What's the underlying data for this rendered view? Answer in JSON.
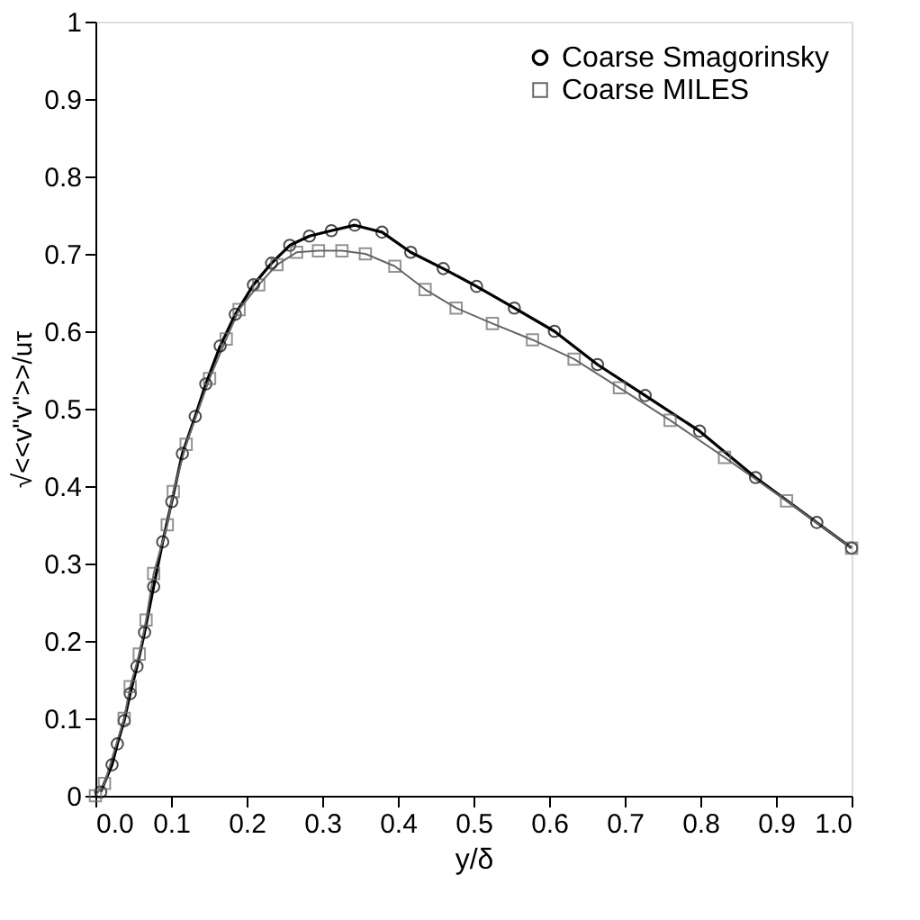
{
  "chart_data": {
    "type": "line",
    "xlabel": "y/δ",
    "ylabel": "√<<v\"v\">>/uτ",
    "xlim": [
      0,
      1
    ],
    "ylim": [
      0,
      1
    ],
    "xticks": [
      {
        "value": 0,
        "label": "0.0"
      },
      0.1,
      0.2,
      0.3,
      0.4,
      0.5,
      0.6,
      0.7,
      0.8,
      0.9,
      {
        "value": 1,
        "label": "1.0"
      }
    ],
    "yticks": [
      0,
      0.1,
      0.2,
      0.3,
      0.4,
      0.5,
      0.6,
      0.7,
      0.8,
      0.9,
      1
    ],
    "grid": false,
    "legend": "top right",
    "line_style": "solid",
    "series": [
      {
        "name": "Coarse Smagorinsky",
        "color": "#000000",
        "marker": "circle",
        "x": [
          0.007,
          0.022,
          0.029,
          0.038,
          0.046,
          0.055,
          0.065,
          0.077,
          0.089,
          0.101,
          0.115,
          0.132,
          0.146,
          0.165,
          0.185,
          0.209,
          0.233,
          0.257,
          0.283,
          0.312,
          0.343,
          0.379,
          0.417,
          0.46,
          0.504,
          0.554,
          0.607,
          0.664,
          0.727,
          0.799,
          0.873,
          0.954,
          1.0
        ],
        "values": [
          0.005,
          0.04,
          0.067,
          0.097,
          0.132,
          0.167,
          0.211,
          0.27,
          0.328,
          0.38,
          0.442,
          0.49,
          0.532,
          0.581,
          0.622,
          0.66,
          0.688,
          0.711,
          0.723,
          0.73,
          0.737,
          0.728,
          0.702,
          0.681,
          0.658,
          0.63,
          0.6,
          0.557,
          0.517,
          0.471,
          0.411,
          0.353,
          0.32
        ]
      },
      {
        "name": "Coarse MILES",
        "color": "#666666",
        "marker": "square",
        "x": [
          0.0,
          0.012,
          0.038,
          0.046,
          0.058,
          0.067,
          0.077,
          0.095,
          0.103,
          0.12,
          0.151,
          0.173,
          0.19,
          0.216,
          0.24,
          0.266,
          0.295,
          0.326,
          0.357,
          0.396,
          0.436,
          0.477,
          0.525,
          0.578,
          0.633,
          0.693,
          0.76,
          0.832,
          0.914,
          1.0
        ],
        "values": [
          0.0,
          0.016,
          0.1,
          0.141,
          0.183,
          0.227,
          0.287,
          0.35,
          0.393,
          0.454,
          0.539,
          0.59,
          0.628,
          0.66,
          0.686,
          0.702,
          0.704,
          0.704,
          0.7,
          0.684,
          0.654,
          0.63,
          0.61,
          0.589,
          0.564,
          0.527,
          0.485,
          0.437,
          0.381,
          0.32
        ]
      }
    ]
  }
}
